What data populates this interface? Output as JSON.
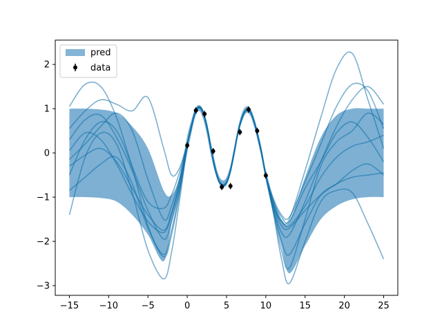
{
  "chart_data": {
    "type": "line",
    "title": "",
    "xlabel": "",
    "ylabel": "",
    "xlim": [
      -16.8,
      26.8
    ],
    "ylim": [
      -3.22,
      2.55
    ],
    "xticks": [
      -15,
      -10,
      -5,
      0,
      5,
      10,
      15,
      20,
      25
    ],
    "yticks": [
      -3,
      -2,
      -1,
      0,
      1,
      2
    ],
    "grid": false,
    "legend_position": "top-left",
    "colors": {
      "band": "#1f77b4",
      "samples": "#0f6fa8",
      "data": "#000000",
      "axes": "#000000"
    },
    "legend": [
      {
        "label": "pred",
        "kind": "patch"
      },
      {
        "label": "data",
        "kind": "errorbar"
      }
    ],
    "prediction_band": {
      "name": "pred",
      "x": [
        -15,
        -13,
        -11,
        -9,
        -7,
        -5,
        -3,
        -2,
        -1,
        0,
        0.5,
        1,
        1.5,
        2,
        2.5,
        3,
        3.5,
        4,
        4.5,
        5,
        5.5,
        6,
        6.5,
        7,
        7.5,
        8,
        8.5,
        9,
        9.5,
        10,
        11,
        12,
        13,
        15,
        17,
        19,
        21,
        23,
        25
      ],
      "lower": [
        -1.0,
        -1.0,
        -1.02,
        -1.1,
        -1.4,
        -1.85,
        -2.45,
        -1.6,
        -0.9,
        0.0,
        0.42,
        0.8,
        0.95,
        0.78,
        0.42,
        -0.05,
        -0.42,
        -0.68,
        -0.78,
        -0.72,
        -0.48,
        -0.06,
        0.42,
        0.72,
        0.9,
        0.85,
        0.6,
        0.25,
        -0.15,
        -0.62,
        -1.4,
        -2.1,
        -2.72,
        -2.1,
        -1.5,
        -1.2,
        -1.05,
        -1.0,
        -1.0
      ],
      "upper": [
        1.0,
        1.0,
        0.98,
        0.9,
        0.6,
        0.1,
        -0.85,
        -0.95,
        -0.55,
        0.38,
        0.72,
        1.0,
        1.08,
        0.98,
        0.7,
        0.25,
        -0.18,
        -0.5,
        -0.62,
        -0.55,
        -0.28,
        0.16,
        0.6,
        0.92,
        1.05,
        1.02,
        0.8,
        0.48,
        0.08,
        -0.38,
        -1.05,
        -1.5,
        -1.55,
        -0.55,
        0.35,
        0.85,
        1.0,
        1.0,
        1.0
      ]
    },
    "samples_x": [
      -15,
      -13,
      -11,
      -9,
      -7,
      -5,
      -3,
      -2,
      -1,
      0,
      0.5,
      1,
      1.5,
      2,
      2.5,
      3,
      3.5,
      4,
      4.5,
      5,
      5.5,
      6,
      6.5,
      7,
      7.5,
      8,
      8.5,
      9,
      9.5,
      10,
      11,
      12,
      13,
      15,
      17,
      19,
      21,
      23,
      25
    ],
    "samples": [
      {
        "values": [
          1.05,
          1.55,
          1.5,
          0.8,
          -0.3,
          -1.1,
          -1.25,
          -0.95,
          -0.45,
          0.2,
          0.55,
          0.9,
          1.05,
          0.95,
          0.62,
          0.15,
          -0.3,
          -0.6,
          -0.72,
          -0.65,
          -0.38,
          0.05,
          0.5,
          0.82,
          0.98,
          0.95,
          0.72,
          0.38,
          -0.02,
          -0.5,
          -1.2,
          -1.55,
          -1.5,
          -0.4,
          0.8,
          1.9,
          2.25,
          1.2,
          0.1
        ]
      },
      {
        "values": [
          0.3,
          0.75,
          0.85,
          0.35,
          -0.4,
          -1.3,
          -1.95,
          -1.55,
          -0.8,
          0.18,
          0.58,
          0.92,
          1.02,
          0.92,
          0.58,
          0.1,
          -0.33,
          -0.63,
          -0.74,
          -0.68,
          -0.42,
          0.02,
          0.48,
          0.8,
          0.96,
          0.93,
          0.7,
          0.35,
          -0.05,
          -0.52,
          -1.25,
          -1.8,
          -1.85,
          -1.1,
          -0.2,
          0.6,
          1.2,
          1.5,
          1.1
        ]
      },
      {
        "values": [
          -0.5,
          0.3,
          0.7,
          0.5,
          -0.35,
          -1.65,
          -2.35,
          -1.85,
          -0.95,
          0.16,
          0.56,
          0.91,
          1.03,
          0.92,
          0.59,
          0.12,
          -0.32,
          -0.62,
          -0.73,
          -0.67,
          -0.4,
          0.04,
          0.49,
          0.81,
          0.97,
          0.94,
          0.71,
          0.36,
          -0.04,
          -0.51,
          -1.35,
          -2.2,
          -2.6,
          -1.5,
          -0.3,
          0.25,
          0.5,
          0.9,
          0.65
        ]
      },
      {
        "values": [
          -1.4,
          -0.1,
          0.45,
          0.2,
          -0.9,
          -2.2,
          -2.85,
          -2.25,
          -1.1,
          0.14,
          0.55,
          0.9,
          1.02,
          0.91,
          0.58,
          0.11,
          -0.33,
          -0.63,
          -0.74,
          -0.68,
          -0.41,
          0.03,
          0.48,
          0.8,
          0.96,
          0.93,
          0.7,
          0.35,
          -0.05,
          -0.52,
          -1.4,
          -2.4,
          -2.95,
          -2.0,
          -1.1,
          -0.85,
          -0.9,
          -1.6,
          -2.4
        ]
      },
      {
        "values": [
          -0.85,
          -0.55,
          -0.25,
          -0.1,
          -0.7,
          -1.7,
          -2.3,
          -1.75,
          -0.9,
          0.17,
          0.57,
          0.92,
          1.03,
          0.92,
          0.6,
          0.13,
          -0.31,
          -0.62,
          -0.73,
          -0.67,
          -0.41,
          0.03,
          0.49,
          0.81,
          0.97,
          0.94,
          0.71,
          0.36,
          -0.04,
          -0.51,
          -1.3,
          -2.0,
          -2.3,
          -1.6,
          -0.95,
          -0.7,
          -0.4,
          -0.25,
          -0.5
        ]
      },
      {
        "values": [
          0.05,
          0.45,
          0.3,
          -0.25,
          -0.95,
          -1.55,
          -1.8,
          -1.4,
          -0.7,
          0.19,
          0.58,
          0.92,
          1.03,
          0.92,
          0.59,
          0.12,
          -0.32,
          -0.62,
          -0.73,
          -0.67,
          -0.4,
          0.04,
          0.49,
          0.81,
          0.97,
          0.94,
          0.71,
          0.36,
          -0.04,
          -0.51,
          -1.15,
          -1.55,
          -1.65,
          -1.2,
          -0.55,
          -0.1,
          0.15,
          0.25,
          0.4
        ]
      },
      {
        "values": [
          -0.3,
          -0.05,
          0.1,
          -0.2,
          -0.8,
          -1.4,
          -1.75,
          -1.35,
          -0.7,
          0.18,
          0.57,
          0.91,
          1.02,
          0.91,
          0.58,
          0.11,
          -0.33,
          -0.63,
          -0.74,
          -0.68,
          -0.41,
          0.03,
          0.48,
          0.8,
          0.96,
          0.93,
          0.7,
          0.35,
          -0.05,
          -0.52,
          -1.2,
          -1.65,
          -1.7,
          -1.3,
          -0.95,
          -0.7,
          -0.55,
          -0.5,
          -0.45
        ]
      },
      {
        "values": [
          -0.15,
          0.2,
          0.6,
          0.9,
          0.5,
          -0.6,
          -1.5,
          -1.2,
          -0.6,
          0.2,
          0.58,
          0.92,
          1.03,
          0.92,
          0.59,
          0.12,
          -0.32,
          -0.62,
          -0.73,
          -0.67,
          -0.4,
          0.04,
          0.49,
          0.81,
          0.97,
          0.94,
          0.71,
          0.36,
          -0.04,
          -0.51,
          -1.1,
          -1.45,
          -1.55,
          -0.8,
          -0.2,
          0.45,
          0.7,
          0.35,
          -0.2
        ]
      },
      {
        "values": [
          0.55,
          0.95,
          1.2,
          1.1,
          0.95,
          1.25,
          0.1,
          -0.5,
          -0.35,
          0.22,
          0.6,
          0.93,
          1.04,
          0.93,
          0.6,
          0.13,
          -0.31,
          -0.61,
          -0.72,
          -0.66,
          -0.39,
          0.05,
          0.5,
          0.82,
          0.98,
          0.95,
          0.72,
          0.37,
          -0.03,
          -0.5,
          -1.05,
          -1.4,
          -1.45,
          -0.65,
          0.2,
          1.05,
          1.55,
          1.4,
          0.55
        ]
      }
    ],
    "data_points": {
      "name": "data",
      "x": [
        0.0,
        1.1,
        2.2,
        3.3,
        4.4,
        5.5,
        6.7,
        7.8,
        8.9,
        10.0
      ],
      "y": [
        0.17,
        0.96,
        0.88,
        0.04,
        -0.77,
        -0.75,
        0.47,
        0.98,
        0.5,
        -0.51
      ],
      "err": [
        0.07,
        0.07,
        0.07,
        0.07,
        0.07,
        0.07,
        0.07,
        0.07,
        0.07,
        0.07
      ]
    }
  }
}
